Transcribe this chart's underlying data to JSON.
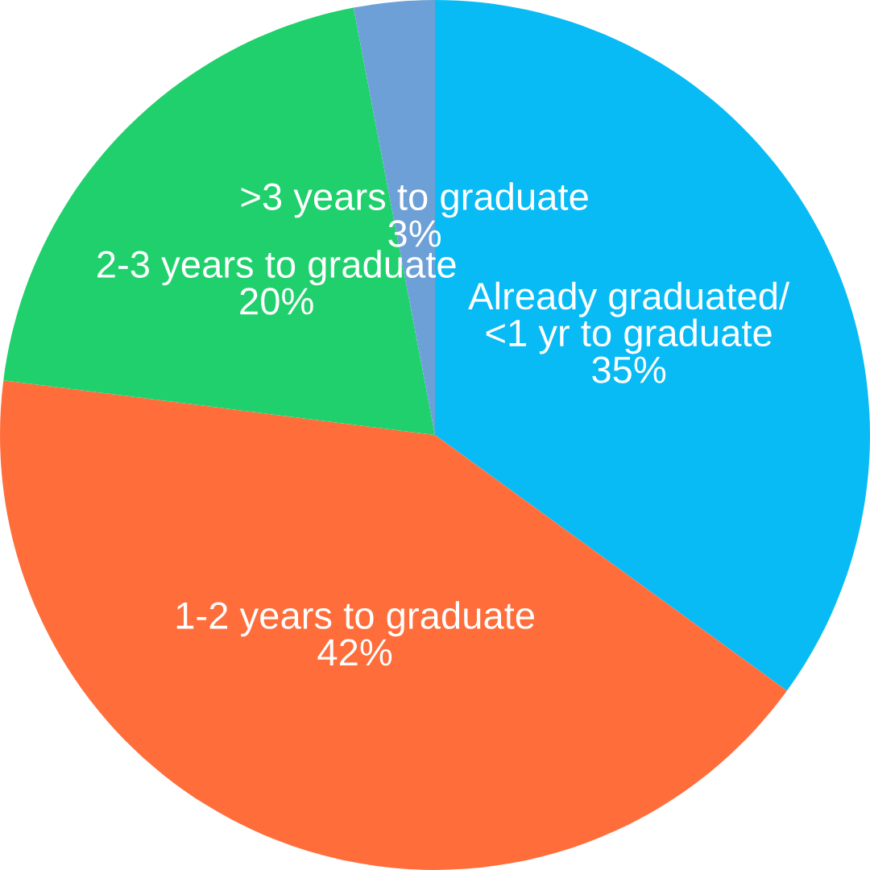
{
  "chart_data": {
    "type": "pie",
    "categories": [
      "Already graduated/\n<1 yr to graduate",
      "1-2 years to graduate",
      "2-3 years to graduate",
      ">3 years to graduate"
    ],
    "values": [
      35,
      42,
      20,
      3
    ],
    "value_labels": [
      "35%",
      "42%",
      "20%",
      "3%"
    ],
    "colors": [
      "#08bbf5",
      "#ff6d3b",
      "#20d06c",
      "#6ca0d6"
    ],
    "legend": false
  }
}
